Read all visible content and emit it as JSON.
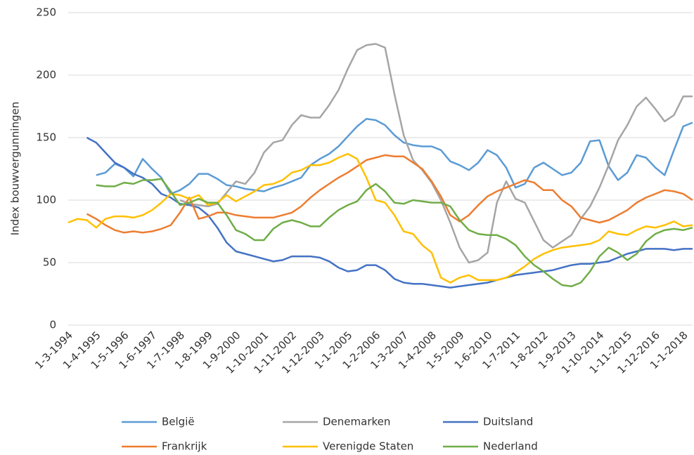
{
  "chart_data": {
    "type": "line",
    "y_label": "Index bouwvergunningen",
    "categories": [
      "1-3-1994",
      null,
      null,
      "1-4-1995",
      null,
      null,
      "1-5-1996",
      null,
      null,
      "1-6-1997",
      null,
      null,
      "1-7-1998",
      null,
      null,
      "1-8-1999",
      null,
      null,
      "1-9-2000",
      null,
      null,
      "1-10-2001",
      null,
      null,
      "1-11-2002",
      null,
      null,
      "1-12-2003",
      null,
      null,
      "1-1-2005",
      null,
      null,
      "1-2-2006",
      null,
      null,
      "1-3-2007",
      null,
      null,
      "1-4-2008",
      null,
      null,
      "1-5-2009",
      null,
      null,
      "1-6-2010",
      null,
      null,
      "1-7-2011",
      null,
      null,
      "1-8-2012",
      null,
      null,
      "1-9-2013",
      null,
      null,
      "1-10-2014",
      null,
      null,
      "1-11-2015",
      null,
      null,
      "1-12-2016",
      null,
      null,
      "1-1-2018",
      null
    ],
    "ylim": [
      0,
      250
    ],
    "yticks": [
      0,
      50,
      100,
      150,
      200,
      250
    ],
    "grid": true,
    "series": [
      {
        "name": "België",
        "color": "#5b9bd5",
        "values": [
          null,
          null,
          null,
          120,
          122,
          129,
          126,
          119,
          133,
          125,
          118,
          105,
          108,
          113,
          121,
          121,
          117,
          112,
          111,
          109,
          108,
          107,
          110,
          112,
          115,
          118,
          128,
          133,
          137,
          143,
          151,
          159,
          165,
          164,
          160,
          152,
          146,
          144,
          143,
          143,
          140,
          131,
          128,
          124,
          130,
          140,
          136,
          126,
          110,
          113,
          126,
          130,
          125,
          120,
          122,
          130,
          147,
          148,
          127,
          116,
          122,
          136,
          134,
          126,
          120,
          140,
          159,
          162
        ]
      },
      {
        "name": "Denemarken",
        "color": "#a5a5a5",
        "values": [
          null,
          null,
          null,
          null,
          null,
          null,
          null,
          null,
          null,
          null,
          null,
          null,
          100,
          97,
          96,
          95,
          97,
          106,
          115,
          113,
          122,
          138,
          146,
          148,
          160,
          168,
          166,
          166,
          176,
          188,
          205,
          220,
          224,
          225,
          222,
          185,
          152,
          132,
          124,
          114,
          100,
          82,
          62,
          50,
          52,
          58,
          98,
          115,
          101,
          98,
          83,
          68,
          62,
          67,
          72,
          85,
          95,
          110,
          128,
          148,
          160,
          175,
          182,
          173,
          163,
          168,
          183,
          183
        ]
      },
      {
        "name": "Duitsland",
        "color": "#4472c4",
        "values": [
          null,
          null,
          150,
          146,
          138,
          130,
          126,
          121,
          118,
          113,
          105,
          102,
          97,
          96,
          94,
          88,
          78,
          66,
          59,
          57,
          55,
          53,
          51,
          52,
          55,
          55,
          55,
          54,
          51,
          46,
          43,
          44,
          48,
          48,
          44,
          37,
          34,
          33,
          33,
          32,
          31,
          30,
          31,
          32,
          33,
          34,
          36,
          38,
          40,
          41,
          42,
          43,
          44,
          46,
          48,
          49,
          49,
          50,
          51,
          54,
          57,
          59,
          61,
          61,
          61,
          60,
          61,
          61
        ]
      },
      {
        "name": "Frankrijk",
        "color": "#ed7d31",
        "values": [
          null,
          null,
          89,
          85,
          80,
          76,
          74,
          75,
          74,
          75,
          77,
          80,
          90,
          102,
          85,
          87,
          90,
          90,
          88,
          87,
          86,
          86,
          86,
          88,
          90,
          95,
          102,
          108,
          113,
          118,
          122,
          127,
          132,
          134,
          136,
          135,
          135,
          130,
          125,
          115,
          103,
          88,
          83,
          88,
          96,
          103,
          107,
          110,
          113,
          116,
          114,
          108,
          108,
          100,
          95,
          86,
          84,
          82,
          84,
          88,
          92,
          98,
          102,
          105,
          108,
          107,
          105,
          100
        ]
      },
      {
        "name": "Verenigde Staten",
        "color": "#ffc000",
        "values": [
          82,
          85,
          84,
          78,
          85,
          87,
          87,
          86,
          88,
          92,
          98,
          105,
          104,
          101,
          104,
          96,
          98,
          104,
          99,
          103,
          107,
          112,
          113,
          116,
          122,
          124,
          128,
          128,
          130,
          134,
          137,
          133,
          118,
          100,
          98,
          88,
          75,
          73,
          64,
          58,
          38,
          34,
          38,
          40,
          36,
          36,
          36,
          38,
          42,
          47,
          53,
          57,
          60,
          62,
          63,
          64,
          65,
          68,
          75,
          73,
          72,
          76,
          79,
          78,
          80,
          83,
          79,
          80
        ]
      },
      {
        "name": "Nederland",
        "color": "#70ad47",
        "values": [
          null,
          null,
          null,
          112,
          111,
          111,
          114,
          113,
          116,
          116,
          117,
          107,
          96,
          98,
          101,
          98,
          98,
          88,
          76,
          73,
          68,
          68,
          77,
          82,
          84,
          82,
          79,
          79,
          86,
          92,
          96,
          99,
          108,
          113,
          107,
          98,
          97,
          100,
          99,
          98,
          98,
          95,
          84,
          76,
          73,
          72,
          72,
          69,
          64,
          55,
          48,
          43,
          37,
          32,
          31,
          34,
          43,
          55,
          62,
          58,
          52,
          57,
          67,
          73,
          76,
          77,
          76,
          78
        ]
      }
    ]
  }
}
